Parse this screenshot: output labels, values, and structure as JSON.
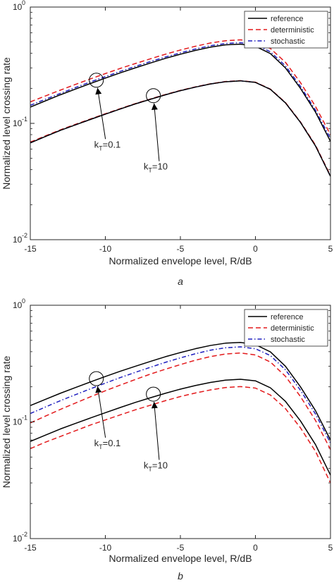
{
  "chart_data": [
    {
      "type": "line",
      "panel_label": "a",
      "xlabel": "Normalized envelope level, R/dB",
      "ylabel": "Normalized level crossing rate",
      "xlim": [
        -15,
        5
      ],
      "ylim": [
        0.01,
        1
      ],
      "yscale": "log",
      "x_ticks": [
        -15,
        -10,
        -5,
        0,
        5
      ],
      "x_tick_labels": [
        "-15",
        "-10",
        "-5",
        "0",
        "5"
      ],
      "y_ticks": [
        0.01,
        0.1,
        1
      ],
      "y_tick_labels": [
        {
          "base": "10",
          "exp": "-2"
        },
        {
          "base": "10",
          "exp": "-1"
        },
        {
          "base": "10",
          "exp": "0"
        }
      ],
      "legend": {
        "position": "top-right",
        "entries": [
          {
            "label": "reference",
            "color": "#000000",
            "dash": "solid"
          },
          {
            "label": "deterministic",
            "color": "#e31a1c",
            "dash": "dashed"
          },
          {
            "label": "stochastic",
            "color": "#1f1fbf",
            "dash": "dashdot"
          }
        ]
      },
      "x": [
        -15,
        -14,
        -13,
        -12,
        -11,
        -10,
        -9,
        -8,
        -7,
        -6,
        -5,
        -4,
        -3,
        -2,
        -1,
        0,
        1,
        2,
        3,
        4,
        5
      ],
      "groups": [
        {
          "label": "kT=0.1",
          "series": [
            {
              "legend": "reference",
              "values": [
                0.138,
                0.156,
                0.176,
                0.197,
                0.22,
                0.245,
                0.272,
                0.3,
                0.33,
                0.362,
                0.393,
                0.424,
                0.452,
                0.473,
                0.48,
                0.46,
                0.398,
                0.3,
                0.2,
                0.125,
                0.07
              ]
            },
            {
              "legend": "deterministic",
              "values": [
                0.153,
                0.172,
                0.193,
                0.216,
                0.241,
                0.268,
                0.297,
                0.327,
                0.359,
                0.393,
                0.427,
                0.46,
                0.491,
                0.513,
                0.523,
                0.505,
                0.44,
                0.335,
                0.224,
                0.14,
                0.08
              ]
            },
            {
              "legend": "stochastic",
              "values": [
                0.143,
                0.161,
                0.181,
                0.203,
                0.227,
                0.252,
                0.28,
                0.309,
                0.34,
                0.372,
                0.404,
                0.436,
                0.465,
                0.486,
                0.494,
                0.475,
                0.412,
                0.312,
                0.208,
                0.13,
                0.074
              ]
            }
          ]
        },
        {
          "label": "kT=10",
          "series": [
            {
              "legend": "reference",
              "values": [
                0.068,
                0.077,
                0.087,
                0.097,
                0.108,
                0.12,
                0.133,
                0.147,
                0.161,
                0.176,
                0.191,
                0.205,
                0.218,
                0.228,
                0.232,
                0.225,
                0.196,
                0.15,
                0.102,
                0.064,
                0.035
              ]
            },
            {
              "legend": "deterministic",
              "values": [
                0.069,
                0.078,
                0.088,
                0.098,
                0.109,
                0.121,
                0.134,
                0.148,
                0.162,
                0.177,
                0.192,
                0.206,
                0.219,
                0.229,
                0.233,
                0.226,
                0.197,
                0.151,
                0.103,
                0.065,
                0.0355
              ]
            },
            {
              "legend": "stochastic",
              "values": [
                0.068,
                0.077,
                0.087,
                0.097,
                0.108,
                0.12,
                0.133,
                0.147,
                0.161,
                0.176,
                0.191,
                0.205,
                0.218,
                0.228,
                0.232,
                0.225,
                0.196,
                0.15,
                0.102,
                0.064,
                0.035
              ]
            }
          ]
        }
      ],
      "annotations": [
        {
          "label_main": "k",
          "label_sub": "T",
          "label_rest": "=0.1",
          "circle_at": [
            -10.6,
            0.235
          ],
          "text_at": [
            -9.9,
            0.062
          ]
        },
        {
          "label_main": "k",
          "label_sub": "T",
          "label_rest": "=10",
          "circle_at": [
            -6.8,
            0.173
          ],
          "text_at": [
            -6.6,
            0.04
          ]
        }
      ]
    },
    {
      "type": "line",
      "panel_label": "b",
      "xlabel": "Normalized envelope level, R/dB",
      "ylabel": "Normalized level crossing rate",
      "xlim": [
        -15,
        5
      ],
      "ylim": [
        0.01,
        1
      ],
      "yscale": "log",
      "x_ticks": [
        -15,
        -10,
        -5,
        0,
        5
      ],
      "x_tick_labels": [
        "-15",
        "-10",
        "-5",
        "0",
        "5"
      ],
      "y_ticks": [
        0.01,
        0.1,
        1
      ],
      "y_tick_labels": [
        {
          "base": "10",
          "exp": "-2"
        },
        {
          "base": "10",
          "exp": "-1"
        },
        {
          "base": "10",
          "exp": "0"
        }
      ],
      "legend": {
        "position": "top-right",
        "entries": [
          {
            "label": "reference",
            "color": "#000000",
            "dash": "solid"
          },
          {
            "label": "deterministic",
            "color": "#e31a1c",
            "dash": "dashed"
          },
          {
            "label": "stochastic",
            "color": "#1f1fbf",
            "dash": "dashdot"
          }
        ]
      },
      "x": [
        -15,
        -14,
        -13,
        -12,
        -11,
        -10,
        -9,
        -8,
        -7,
        -6,
        -5,
        -4,
        -3,
        -2,
        -1,
        0,
        1,
        2,
        3,
        4,
        5
      ],
      "groups": [
        {
          "label": "kT=0.1",
          "series": [
            {
              "legend": "reference",
              "values": [
                0.138,
                0.156,
                0.176,
                0.197,
                0.22,
                0.245,
                0.272,
                0.3,
                0.33,
                0.362,
                0.393,
                0.424,
                0.452,
                0.473,
                0.48,
                0.46,
                0.398,
                0.3,
                0.2,
                0.125,
                0.07
              ]
            },
            {
              "legend": "deterministic",
              "values": [
                0.098,
                0.112,
                0.128,
                0.145,
                0.164,
                0.185,
                0.207,
                0.231,
                0.257,
                0.283,
                0.31,
                0.338,
                0.363,
                0.382,
                0.39,
                0.375,
                0.326,
                0.246,
                0.165,
                0.103,
                0.058
              ]
            },
            {
              "legend": "stochastic",
              "values": [
                0.118,
                0.134,
                0.152,
                0.171,
                0.192,
                0.215,
                0.24,
                0.266,
                0.294,
                0.324,
                0.354,
                0.384,
                0.412,
                0.432,
                0.44,
                0.424,
                0.37,
                0.28,
                0.187,
                0.117,
                0.066
              ]
            }
          ]
        },
        {
          "label": "kT=10",
          "series": [
            {
              "legend": "reference",
              "values": [
                0.068,
                0.077,
                0.087,
                0.097,
                0.108,
                0.12,
                0.133,
                0.147,
                0.161,
                0.176,
                0.191,
                0.205,
                0.218,
                0.228,
                0.232,
                0.225,
                0.196,
                0.15,
                0.102,
                0.064,
                0.035
              ]
            },
            {
              "legend": "deterministic",
              "values": [
                0.059,
                0.067,
                0.075,
                0.084,
                0.094,
                0.104,
                0.115,
                0.127,
                0.139,
                0.152,
                0.165,
                0.177,
                0.188,
                0.197,
                0.201,
                0.195,
                0.17,
                0.13,
                0.089,
                0.056,
                0.03
              ]
            }
          ]
        }
      ],
      "annotations": [
        {
          "label_main": "k",
          "label_sub": "T",
          "label_rest": "=0.1",
          "circle_at": [
            -10.6,
            0.235
          ],
          "text_at": [
            -9.9,
            0.062
          ]
        },
        {
          "label_main": "k",
          "label_sub": "T",
          "label_rest": "=10",
          "circle_at": [
            -6.8,
            0.173
          ],
          "text_at": [
            -6.6,
            0.04
          ]
        }
      ]
    }
  ]
}
